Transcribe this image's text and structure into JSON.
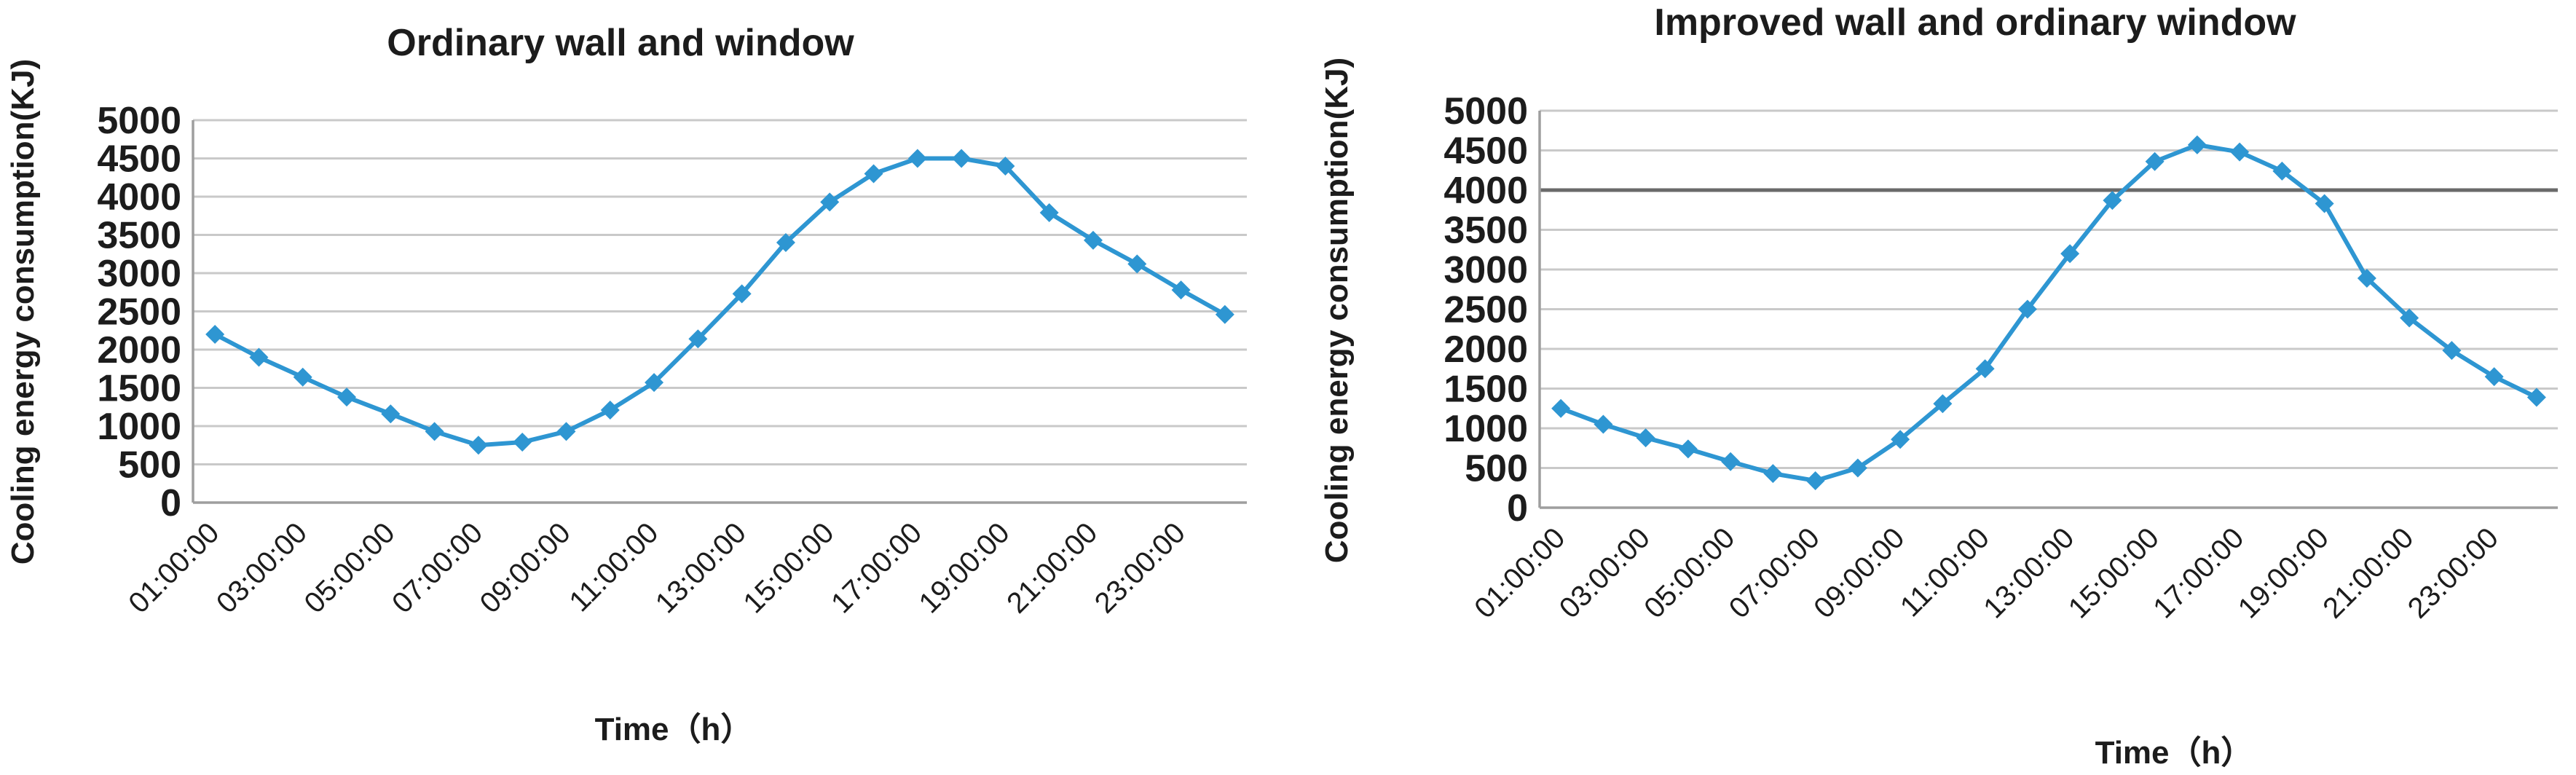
{
  "figure": {
    "background": "#FFFFFF",
    "text_color": "#1C1C1C",
    "grid_color": "#C9C9C9",
    "axis_color": "#9E9E9E"
  },
  "chart_data": [
    {
      "type": "line",
      "title": "Ordinary wall and window",
      "xlabel": "Time（h）",
      "ylabel": "Cooling energy consumption(KJ)",
      "line_color": "#2E96D2",
      "marker": "diamond",
      "grid": true,
      "legend_position": "none",
      "ylim": [
        0,
        5000
      ],
      "ytick_interval": 500,
      "y_tick_labels": [
        "0",
        "500",
        "1000",
        "1500",
        "2000",
        "2500",
        "3000",
        "3500",
        "4000",
        "4500",
        "5000"
      ],
      "x_tick_labels": [
        "01:00:00",
        "03:00:00",
        "05:00:00",
        "07:00:00",
        "09:00:00",
        "11:00:00",
        "13:00:00",
        "15:00:00",
        "17:00:00",
        "19:00:00",
        "21:00:00",
        "23:00:00"
      ],
      "x": [
        "01:00:00",
        "02:00:00",
        "03:00:00",
        "04:00:00",
        "05:00:00",
        "06:00:00",
        "07:00:00",
        "08:00:00",
        "09:00:00",
        "10:00:00",
        "11:00:00",
        "12:00:00",
        "13:00:00",
        "14:00:00",
        "15:00:00",
        "16:00:00",
        "17:00:00",
        "18:00:00",
        "19:00:00",
        "20:00:00",
        "21:00:00",
        "22:00:00",
        "23:00:00",
        "24:00:00"
      ],
      "series": [
        {
          "values": [
            2200,
            1900,
            1640,
            1380,
            1160,
            930,
            750,
            790,
            930,
            1210,
            1570,
            2140,
            2730,
            3400,
            3930,
            4300,
            4500,
            4500,
            4400,
            3790,
            3430,
            3120,
            2780,
            2460
          ]
        }
      ]
    },
    {
      "type": "line",
      "title": "Improved wall and ordinary window",
      "xlabel": "Time（h）",
      "ylabel": "Cooling energy consumption(KJ)",
      "line_color": "#2E96D2",
      "marker": "diamond",
      "grid": true,
      "legend_position": "none",
      "ylim": [
        0,
        5000
      ],
      "ytick_interval": 500,
      "y_tick_labels": [
        "0",
        "500",
        "1000",
        "1500",
        "2000",
        "2500",
        "3000",
        "3500",
        "4000",
        "4500",
        "5000"
      ],
      "x_tick_labels": [
        "01:00:00",
        "03:00:00",
        "05:00:00",
        "07:00:00",
        "09:00:00",
        "11:00:00",
        "13:00:00",
        "15:00:00",
        "17:00:00",
        "19:00:00",
        "21:00:00",
        "23:00:00"
      ],
      "x": [
        "01:00:00",
        "02:00:00",
        "03:00:00",
        "04:00:00",
        "05:00:00",
        "06:00:00",
        "07:00:00",
        "08:00:00",
        "09:00:00",
        "10:00:00",
        "11:00:00",
        "12:00:00",
        "13:00:00",
        "14:00:00",
        "15:00:00",
        "16:00:00",
        "17:00:00",
        "18:00:00",
        "19:00:00",
        "20:00:00",
        "21:00:00",
        "22:00:00",
        "23:00:00",
        "24:00:00"
      ],
      "ref_line": {
        "value": 4000,
        "color": "#6A6A6A"
      },
      "series": [
        {
          "values": [
            1250,
            1050,
            880,
            740,
            580,
            430,
            340,
            500,
            860,
            1310,
            1750,
            2500,
            3200,
            3870,
            4360,
            4570,
            4480,
            4240,
            3830,
            2890,
            2390,
            1980,
            1650,
            1390
          ]
        }
      ]
    }
  ]
}
